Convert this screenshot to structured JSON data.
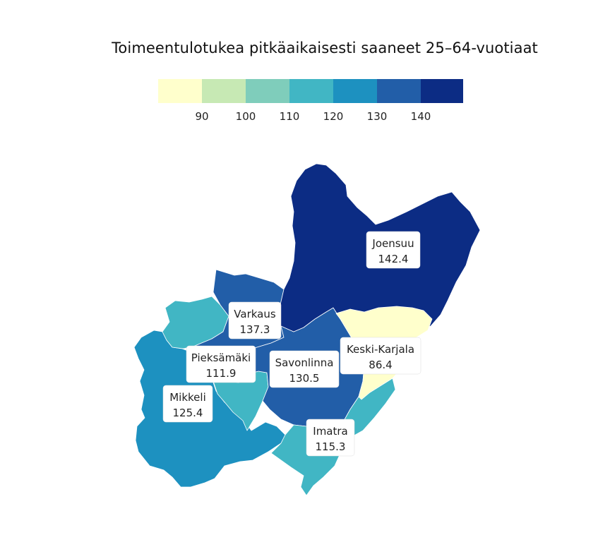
{
  "title": "Toimeentulotukea pitkäaikaisesti saaneet 25–64-vuotiaat",
  "legend": {
    "bins": [
      {
        "color": "#ffffcc"
      },
      {
        "color": "#c7e9b4"
      },
      {
        "color": "#7fcdbb"
      },
      {
        "color": "#41b6c4"
      },
      {
        "color": "#1d91c0"
      },
      {
        "color": "#225ea8"
      },
      {
        "color": "#0c2c84"
      }
    ],
    "tick_labels": [
      "90",
      "100",
      "110",
      "120",
      "130",
      "140"
    ]
  },
  "regions": [
    {
      "name": "Joensuu",
      "value": "142.4",
      "color": "#0c2c84"
    },
    {
      "name": "Varkaus",
      "value": "137.3",
      "color": "#225ea8"
    },
    {
      "name": "Savonlinna",
      "value": "130.5",
      "color": "#225ea8"
    },
    {
      "name": "Mikkeli",
      "value": "125.4",
      "color": "#1d91c0"
    },
    {
      "name": "Imatra",
      "value": "115.3",
      "color": "#41b6c4"
    },
    {
      "name": "Pieksämäki",
      "value": "111.9",
      "color": "#41b6c4"
    },
    {
      "name": "Keski-Karjala",
      "value": "86.4",
      "color": "#ffffcc"
    }
  ]
}
